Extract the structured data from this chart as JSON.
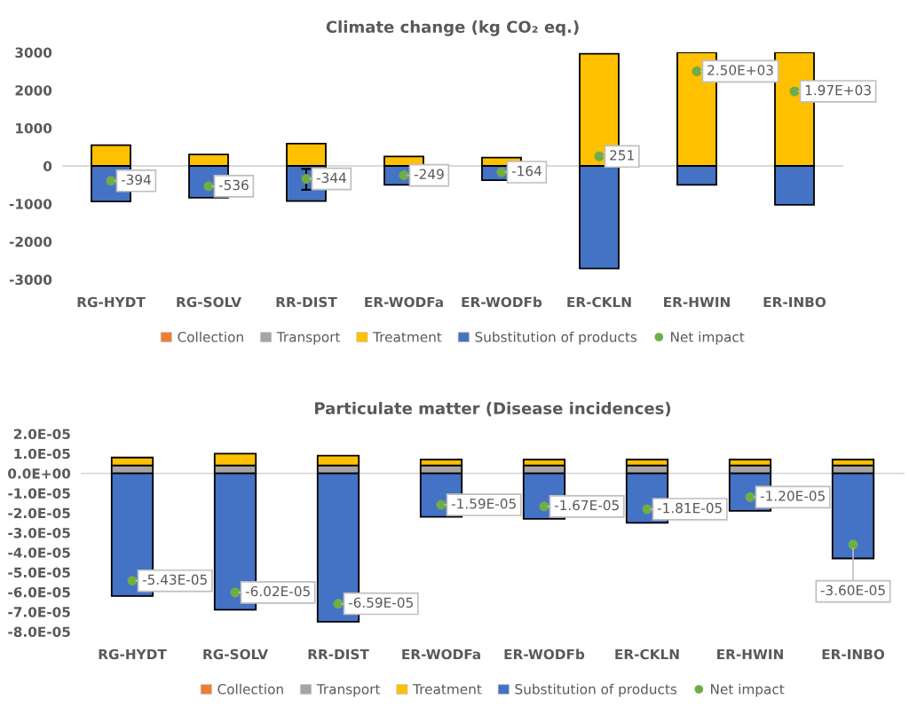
{
  "chart_data": [
    {
      "type": "bar",
      "title": "Climate change (kg CO₂ eq.)",
      "categories": [
        "RG-HYDT",
        "RG-SOLV",
        "RR-DIST",
        "ER-WODFa",
        "ER-WODFb",
        "ER-CKLN",
        "ER-HWIN",
        "ER-INBO"
      ],
      "stacked": true,
      "ylim": [
        -3000,
        3000
      ],
      "yticks": [
        -3000,
        -2000,
        -1000,
        0,
        1000,
        2000,
        3000
      ],
      "legend": "bottom",
      "ref_lines": [
        {
          "axis": "y",
          "value": 0,
          "color": "#d9d9d9"
        }
      ],
      "series": [
        {
          "name": "Collection",
          "color": "#ed7d31",
          "values": [
            0,
            0,
            0,
            0,
            0,
            0,
            0,
            0
          ]
        },
        {
          "name": "Transport",
          "color": "#a5a5a5",
          "values": [
            0,
            0,
            0,
            0,
            0,
            0,
            0,
            0
          ]
        },
        {
          "name": "Treatment",
          "color": "#ffc000",
          "values": [
            550,
            300,
            590,
            250,
            220,
            2960,
            3000,
            3000
          ]
        },
        {
          "name": "Substitution of products",
          "color": "#4472c4",
          "values": [
            -940,
            -840,
            -930,
            -500,
            -380,
            -2710,
            -500,
            -1030
          ]
        },
        {
          "name": "Net impact",
          "type": "scatter",
          "marker": "circle",
          "color": "#70ad47",
          "values": [
            -394,
            -536,
            -344,
            -249,
            -164,
            251,
            2500,
            1970
          ],
          "value_labels": [
            "-394",
            "-536",
            "-344",
            "-249",
            "-164",
            "251",
            "2.50E+03",
            "1.97E+03"
          ],
          "errors": [
            null,
            null,
            [
              -630,
              -80
            ],
            null,
            null,
            null,
            null,
            null
          ]
        }
      ]
    },
    {
      "type": "bar",
      "title": "Particulate matter (Disease incidences)",
      "categories": [
        "RG-HYDT",
        "RG-SOLV",
        "RR-DIST",
        "ER-WODFa",
        "ER-WODFb",
        "ER-CKLN",
        "ER-HWIN",
        "ER-INBO"
      ],
      "stacked": true,
      "ylim": [
        -8e-05,
        2e-05
      ],
      "yticks": [
        {
          "value": -8e-05,
          "label": "-8.0E-05"
        },
        {
          "value": -7e-05,
          "label": "-7.0E-05"
        },
        {
          "value": -6e-05,
          "label": "-6.0E-05"
        },
        {
          "value": -5e-05,
          "label": "-5.0E-05"
        },
        {
          "value": -4e-05,
          "label": "-4.0E-05"
        },
        {
          "value": -3e-05,
          "label": "-3.0E-05"
        },
        {
          "value": -2e-05,
          "label": "-2.0E-05"
        },
        {
          "value": -1e-05,
          "label": "-1.0E-05"
        },
        {
          "value": 0,
          "label": "0.0E+00"
        },
        {
          "value": 1e-05,
          "label": "1.0E-05"
        },
        {
          "value": 2e-05,
          "label": "2.0E-05"
        }
      ],
      "legend": "bottom",
      "ref_lines": [
        {
          "axis": "y",
          "value": 0,
          "color": "#d9d9d9"
        }
      ],
      "series": [
        {
          "name": "Collection",
          "color": "#ed7d31",
          "values": [
            0,
            0,
            0,
            0,
            0,
            0,
            0,
            0
          ]
        },
        {
          "name": "Transport",
          "color": "#a5a5a5",
          "values": [
            4e-06,
            4e-06,
            4e-06,
            4e-06,
            4e-06,
            4e-06,
            4e-06,
            4e-06
          ]
        },
        {
          "name": "Treatment",
          "color": "#ffc000",
          "values": [
            4e-06,
            6e-06,
            5e-06,
            3e-06,
            3e-06,
            3e-06,
            3e-06,
            3e-06
          ]
        },
        {
          "name": "Substitution of products",
          "color": "#4472c4",
          "values": [
            -6.2e-05,
            -6.9e-05,
            -7.5e-05,
            -2.2e-05,
            -2.3e-05,
            -2.5e-05,
            -1.9e-05,
            -4.3e-05
          ]
        },
        {
          "name": "Net impact",
          "type": "scatter",
          "marker": "circle",
          "color": "#70ad47",
          "values": [
            -5.43e-05,
            -6.02e-05,
            -6.59e-05,
            -1.59e-05,
            -1.67e-05,
            -1.81e-05,
            -1.2e-05,
            -3.6e-05
          ],
          "value_labels": [
            "-5.43E-05",
            "-6.02E-05",
            "-6.59E-05",
            "-1.59E-05",
            "-1.67E-05",
            "-1.81E-05",
            "-1.20E-05",
            "-3.60E-05"
          ]
        }
      ]
    }
  ]
}
